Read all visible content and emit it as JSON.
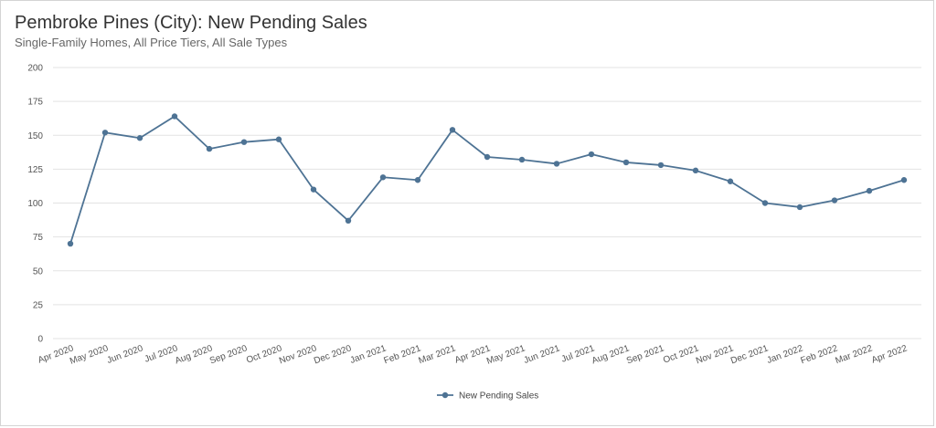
{
  "colors": {
    "series": "#4e7394",
    "grid": "#e3e3e3",
    "axis_text": "#555555"
  },
  "chart_data": {
    "type": "line",
    "title": "Pembroke Pines (City): New Pending Sales",
    "subtitle": "Single-Family Homes, All Price Tiers, All Sale Types",
    "xlabel": "",
    "ylabel": "",
    "ylim": [
      0,
      200
    ],
    "yticks": [
      "0",
      "25",
      "50",
      "75",
      "100",
      "125",
      "150",
      "175",
      "200"
    ],
    "grid": true,
    "legend_position": "bottom-center",
    "categories": [
      "Apr 2020",
      "May 2020",
      "Jun 2020",
      "Jul 2020",
      "Aug 2020",
      "Sep 2020",
      "Oct 2020",
      "Nov 2020",
      "Dec 2020",
      "Jan 2021",
      "Feb 2021",
      "Mar 2021",
      "Apr 2021",
      "May 2021",
      "Jun 2021",
      "Jul 2021",
      "Aug 2021",
      "Sep 2021",
      "Oct 2021",
      "Nov 2021",
      "Dec 2021",
      "Jan 2022",
      "Feb 2022",
      "Mar 2022",
      "Apr 2022"
    ],
    "series": [
      {
        "name": "New Pending Sales",
        "values": [
          70,
          152,
          148,
          164,
          140,
          145,
          147,
          110,
          87,
          119,
          117,
          154,
          134,
          132,
          129,
          136,
          130,
          128,
          124,
          116,
          100,
          97,
          102,
          109,
          117
        ]
      }
    ]
  }
}
